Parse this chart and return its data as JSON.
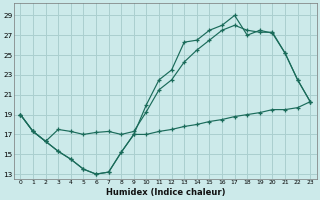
{
  "xlabel": "Humidex (Indice chaleur)",
  "bg_color": "#cceaea",
  "grid_color": "#aacfcf",
  "line_color": "#1a6b5a",
  "ylim": [
    12.5,
    30.2
  ],
  "yticks": [
    13,
    15,
    17,
    19,
    21,
    23,
    25,
    27,
    29
  ],
  "xlim": [
    -0.5,
    23.5
  ],
  "xticks": [
    0,
    1,
    2,
    3,
    4,
    5,
    6,
    7,
    8,
    9,
    10,
    11,
    12,
    13,
    14,
    15,
    16,
    17,
    18,
    19,
    20,
    21,
    22,
    23
  ],
  "curve1_x": [
    0,
    1,
    2,
    3,
    4,
    5,
    6,
    7,
    8,
    9,
    10,
    11,
    12,
    13,
    14,
    15,
    16,
    17,
    18,
    19,
    20,
    21,
    22,
    23
  ],
  "curve1_y": [
    19,
    17.3,
    16.3,
    15.3,
    14.5,
    13.5,
    13.0,
    13.2,
    15.2,
    17.0,
    20.0,
    22.5,
    23.5,
    26.3,
    26.5,
    27.5,
    28.0,
    29.0,
    27.0,
    27.5,
    27.2,
    25.2,
    22.5,
    20.3
  ],
  "curve2_x": [
    0,
    1,
    2,
    3,
    4,
    5,
    6,
    7,
    8,
    9,
    10,
    11,
    12,
    13,
    14,
    15,
    16,
    17,
    18,
    19,
    20,
    21,
    22,
    23
  ],
  "curve2_y": [
    19,
    17.3,
    16.3,
    17.5,
    17.3,
    17.0,
    17.2,
    17.3,
    17.0,
    17.3,
    19.3,
    21.5,
    22.5,
    24.3,
    25.5,
    26.5,
    27.5,
    28.0,
    27.5,
    27.3,
    27.3,
    25.2,
    22.5,
    20.3
  ],
  "curve3_x": [
    0,
    1,
    2,
    3,
    4,
    5,
    6,
    7,
    8,
    9,
    10,
    11,
    12,
    13,
    14,
    15,
    16,
    17,
    18,
    19,
    20,
    21,
    22,
    23
  ],
  "curve3_y": [
    19,
    17.3,
    16.3,
    15.3,
    14.5,
    13.5,
    13.0,
    13.2,
    15.2,
    17.0,
    17.0,
    17.3,
    17.5,
    17.8,
    18.0,
    18.3,
    18.5,
    18.8,
    19.0,
    19.2,
    19.5,
    19.5,
    19.7,
    20.3
  ]
}
